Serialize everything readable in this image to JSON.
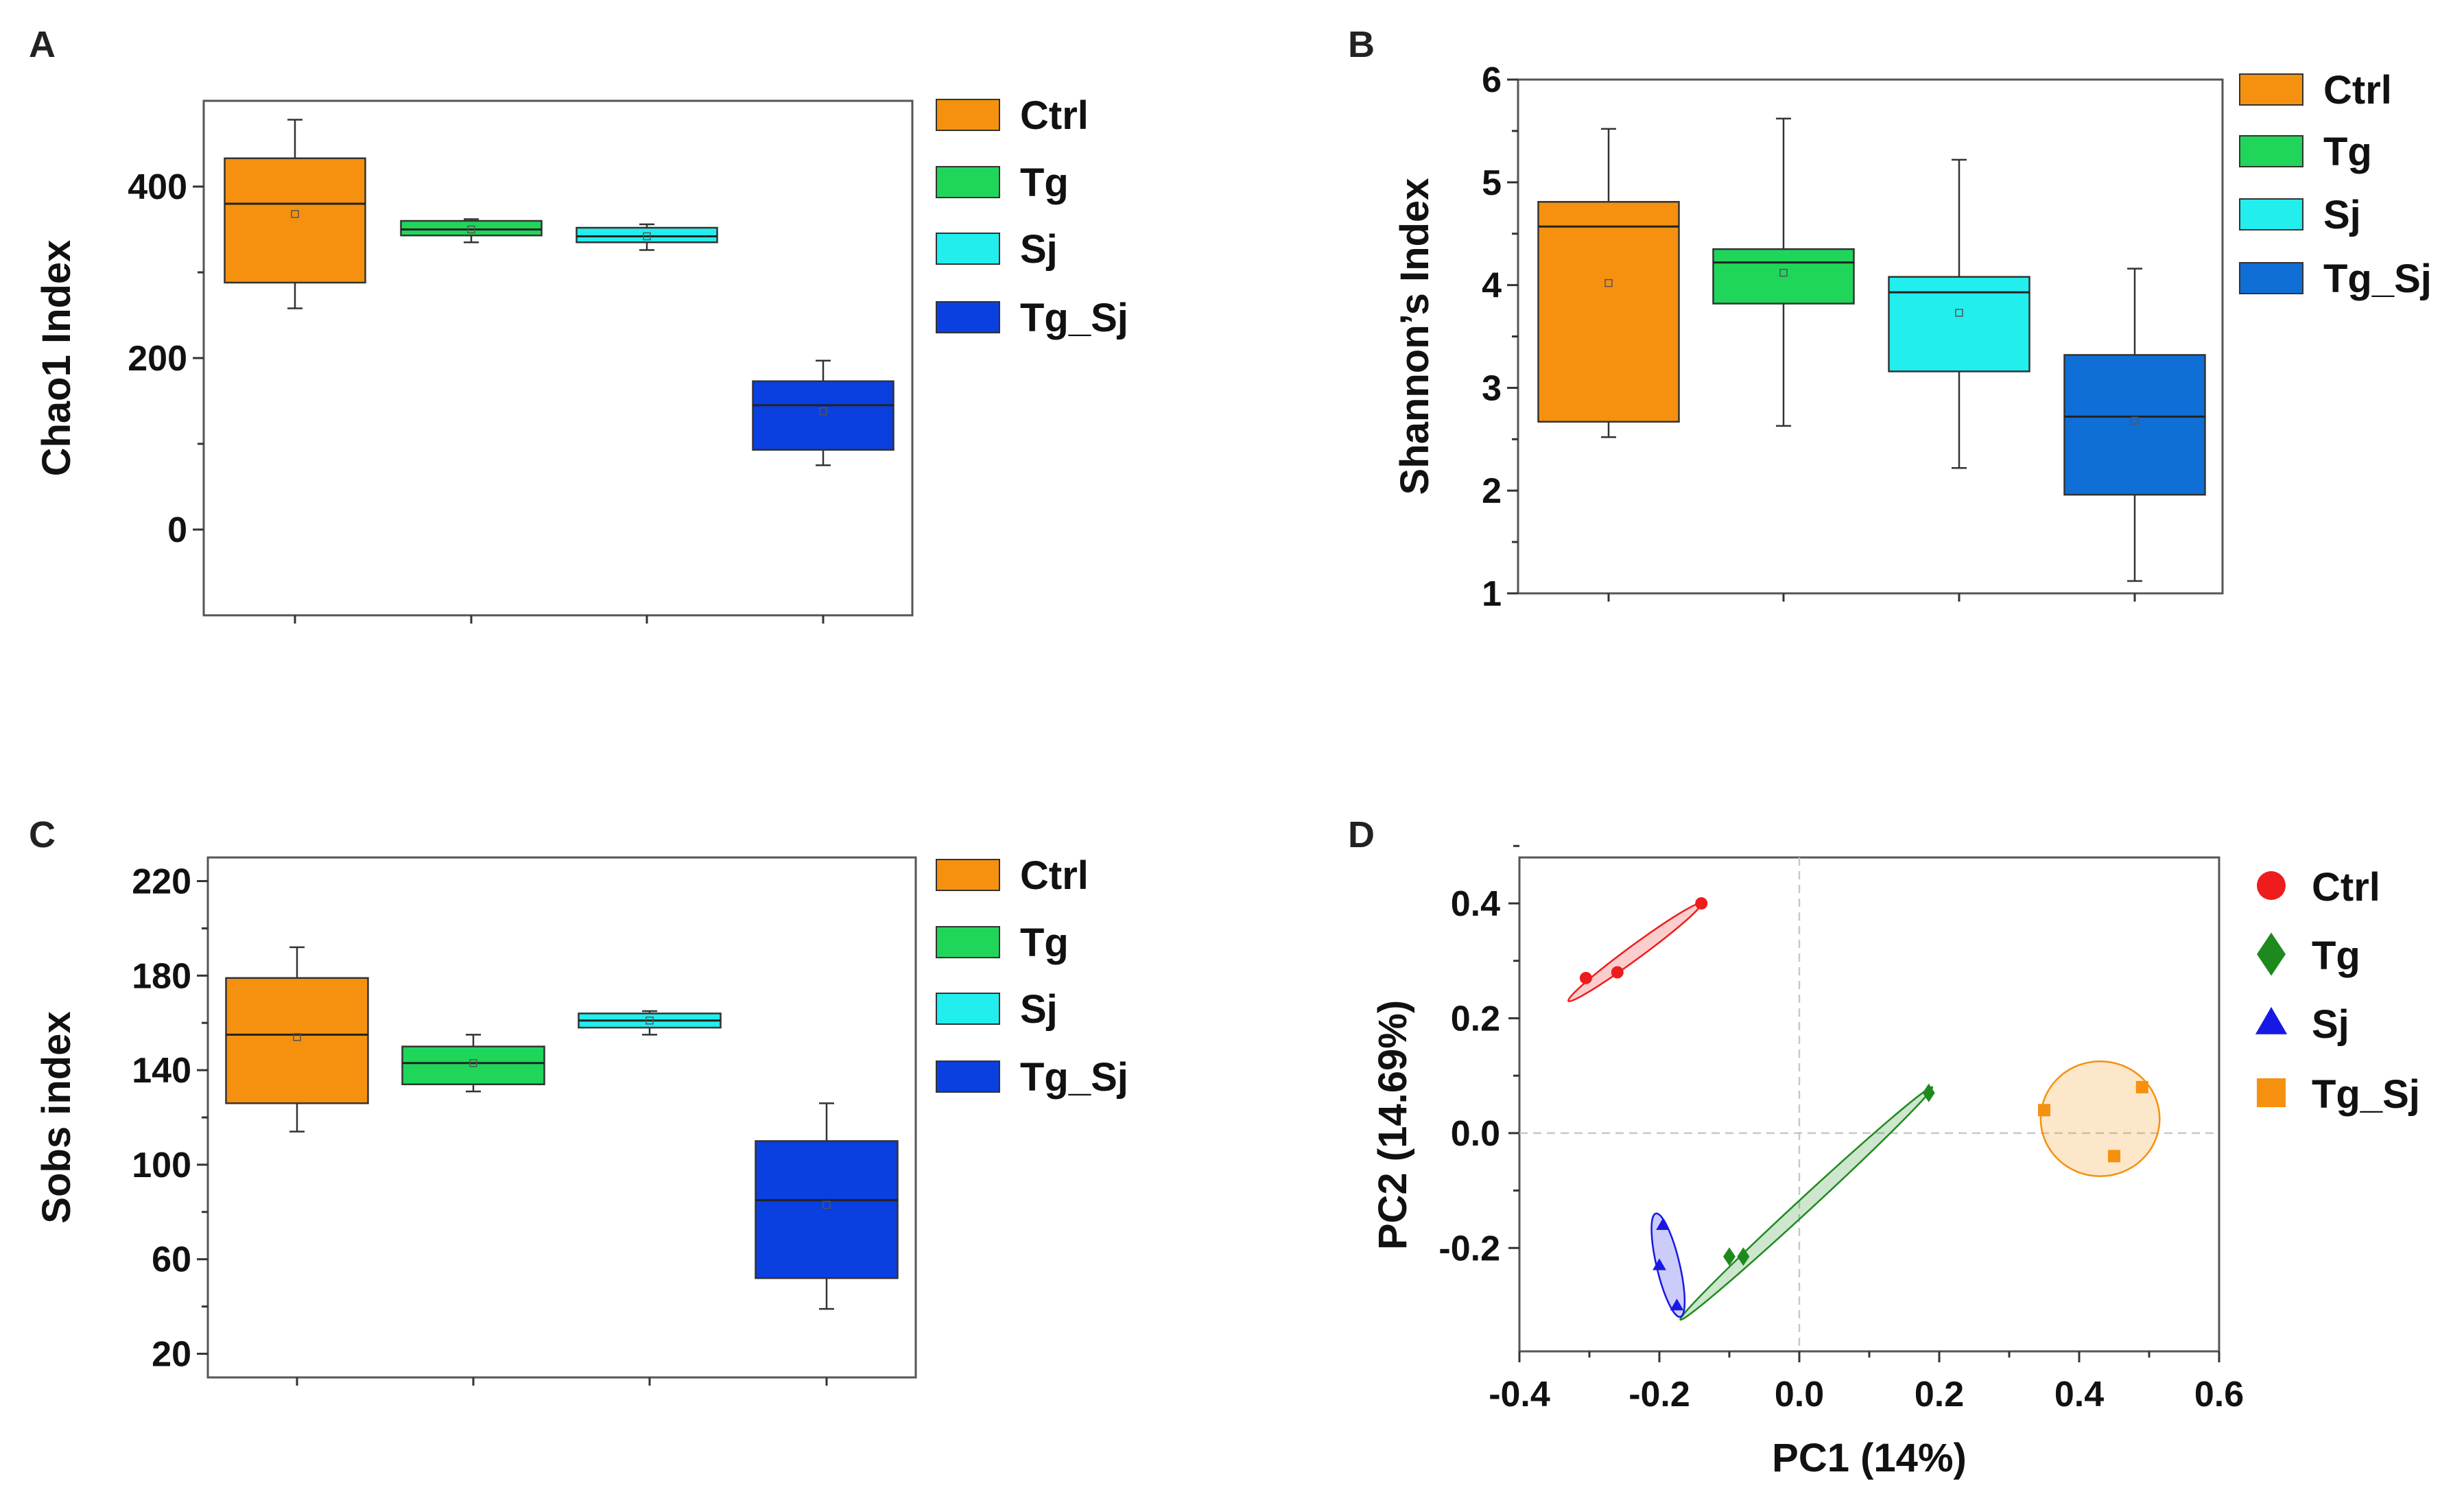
{
  "colors": {
    "Ctrl": "#F5910F",
    "Tg": "#1FD65A",
    "Sj": "#22EEEE",
    "Tg_Sj_dark": "#0A3FE0",
    "Tg_Sj_mid": "#0F6FD6",
    "pca_Ctrl": "#EE1C1C",
    "pca_Tg": "#1E8A1E",
    "pca_Sj": "#1818E6",
    "pca_Tg_Sj": "#F5910F"
  },
  "chart_data": [
    {
      "panel": "A",
      "type": "box",
      "ylabel": "Chao1 Index",
      "ylim": [
        -100,
        500
      ],
      "yticks": [
        0,
        200,
        400
      ],
      "groups": [
        {
          "name": "Ctrl",
          "whisker_low": 258,
          "q1": 288,
          "median": 380,
          "q3": 433,
          "whisker_high": 478,
          "mean": 368,
          "color_key": "Ctrl"
        },
        {
          "name": "Tg",
          "whisker_low": 335,
          "q1": 343,
          "median": 350,
          "q3": 360,
          "whisker_high": 362,
          "mean": 350,
          "color_key": "Tg"
        },
        {
          "name": "Sj",
          "whisker_low": 326,
          "q1": 335,
          "median": 342,
          "q3": 352,
          "whisker_high": 356,
          "mean": 342,
          "color_key": "Sj"
        },
        {
          "name": "Tg_Sj",
          "whisker_low": 75,
          "q1": 93,
          "median": 145,
          "q3": 173,
          "whisker_high": 197,
          "mean": 138,
          "color_key": "Tg_Sj_dark"
        }
      ],
      "legend": [
        "Ctrl",
        "Tg",
        "Sj",
        "Tg_Sj"
      ]
    },
    {
      "panel": "B",
      "type": "box",
      "ylabel": "Shannon’s Index",
      "ylim": [
        1,
        6
      ],
      "yticks": [
        1,
        2,
        3,
        4,
        5,
        6
      ],
      "groups": [
        {
          "name": "Ctrl",
          "whisker_low": 2.52,
          "q1": 2.67,
          "median": 4.57,
          "q3": 4.81,
          "whisker_high": 5.52,
          "mean": 4.02,
          "color_key": "Ctrl"
        },
        {
          "name": "Tg",
          "whisker_low": 2.63,
          "q1": 3.82,
          "median": 4.22,
          "q3": 4.35,
          "whisker_high": 5.62,
          "mean": 4.12,
          "color_key": "Tg"
        },
        {
          "name": "Sj",
          "whisker_low": 2.22,
          "q1": 3.16,
          "median": 3.93,
          "q3": 4.08,
          "whisker_high": 5.22,
          "mean": 3.73,
          "color_key": "Sj"
        },
        {
          "name": "Tg_Sj",
          "whisker_low": 1.12,
          "q1": 1.96,
          "median": 2.72,
          "q3": 3.32,
          "whisker_high": 4.16,
          "mean": 2.68,
          "color_key": "Tg_Sj_mid"
        }
      ],
      "legend": [
        "Ctrl",
        "Tg",
        "Sj",
        "Tg_Sj"
      ]
    },
    {
      "panel": "C",
      "type": "box",
      "ylabel": "Sobs index",
      "ylim": [
        10,
        230
      ],
      "yticks": [
        20,
        60,
        100,
        140,
        180,
        220
      ],
      "groups": [
        {
          "name": "Ctrl",
          "whisker_low": 114,
          "q1": 126,
          "median": 155,
          "q3": 179,
          "whisker_high": 192,
          "mean": 154,
          "color_key": "Ctrl"
        },
        {
          "name": "Tg",
          "whisker_low": 131,
          "q1": 134,
          "median": 143,
          "q3": 150,
          "whisker_high": 155,
          "mean": 143,
          "color_key": "Tg"
        },
        {
          "name": "Sj",
          "whisker_low": 155,
          "q1": 158,
          "median": 161,
          "q3": 164,
          "whisker_high": 165,
          "mean": 161,
          "color_key": "Sj"
        },
        {
          "name": "Tg_Sj",
          "whisker_low": 39,
          "q1": 52,
          "median": 85,
          "q3": 110,
          "whisker_high": 126,
          "mean": 83,
          "color_key": "Tg_Sj_dark"
        }
      ],
      "legend": [
        "Ctrl",
        "Tg",
        "Sj",
        "Tg_Sj"
      ]
    },
    {
      "panel": "D",
      "type": "scatter",
      "xlabel": "PC1 (14%)",
      "ylabel": "PC2 (14.69%)",
      "xlim": [
        -0.4,
        0.6
      ],
      "ylim": [
        -0.38,
        0.48
      ],
      "xticks": [
        "-0.4",
        "-0.2",
        "0.0",
        "0.2",
        "0.4",
        "0.6"
      ],
      "yticks": [
        "-0.2",
        "0.0",
        "0.2",
        "0.4"
      ],
      "series": [
        {
          "name": "Ctrl",
          "marker": "circle",
          "color_key": "pca_Ctrl",
          "points": [
            [
              -0.305,
              0.27
            ],
            [
              -0.26,
              0.28
            ],
            [
              -0.14,
              0.4
            ]
          ],
          "ellipse": {
            "cx": -0.235,
            "cy": 0.315,
            "p1": [
              -0.33,
              0.23
            ],
            "p2": [
              -0.14,
              0.4
            ],
            "half_width": 0.012
          }
        },
        {
          "name": "Tg",
          "marker": "diamond",
          "color_key": "pca_Tg",
          "points": [
            [
              0.185,
              0.07
            ],
            [
              -0.1,
              -0.215
            ],
            [
              -0.08,
              -0.215
            ]
          ],
          "ellipse": {
            "cx": 0.0,
            "cy": -0.125,
            "p1": [
              -0.17,
              -0.325
            ],
            "p2": [
              0.19,
              0.08
            ],
            "half_width": 0.012
          }
        },
        {
          "name": "Sj",
          "marker": "triangle",
          "color_key": "pca_Sj",
          "points": [
            [
              -0.195,
              -0.16
            ],
            [
              -0.2,
              -0.23
            ],
            [
              -0.175,
              -0.3
            ]
          ],
          "ellipse": {
            "cx": -0.188,
            "cy": -0.23,
            "p1": [
              -0.205,
              -0.14
            ],
            "p2": [
              -0.17,
              -0.32
            ],
            "half_width": 0.02
          }
        },
        {
          "name": "Tg_Sj",
          "marker": "square",
          "color_key": "pca_Tg_Sj",
          "points": [
            [
              0.35,
              0.04
            ],
            [
              0.49,
              0.08
            ],
            [
              0.45,
              -0.04
            ]
          ],
          "ellipse": {
            "cx": 0.43,
            "cy": 0.025,
            "p1": [
              0.345,
              0.025
            ],
            "p2": [
              0.515,
              0.025
            ],
            "half_width": 0.1
          }
        }
      ],
      "legend": [
        "Ctrl",
        "Tg",
        "Sj",
        "Tg_Sj"
      ]
    }
  ]
}
